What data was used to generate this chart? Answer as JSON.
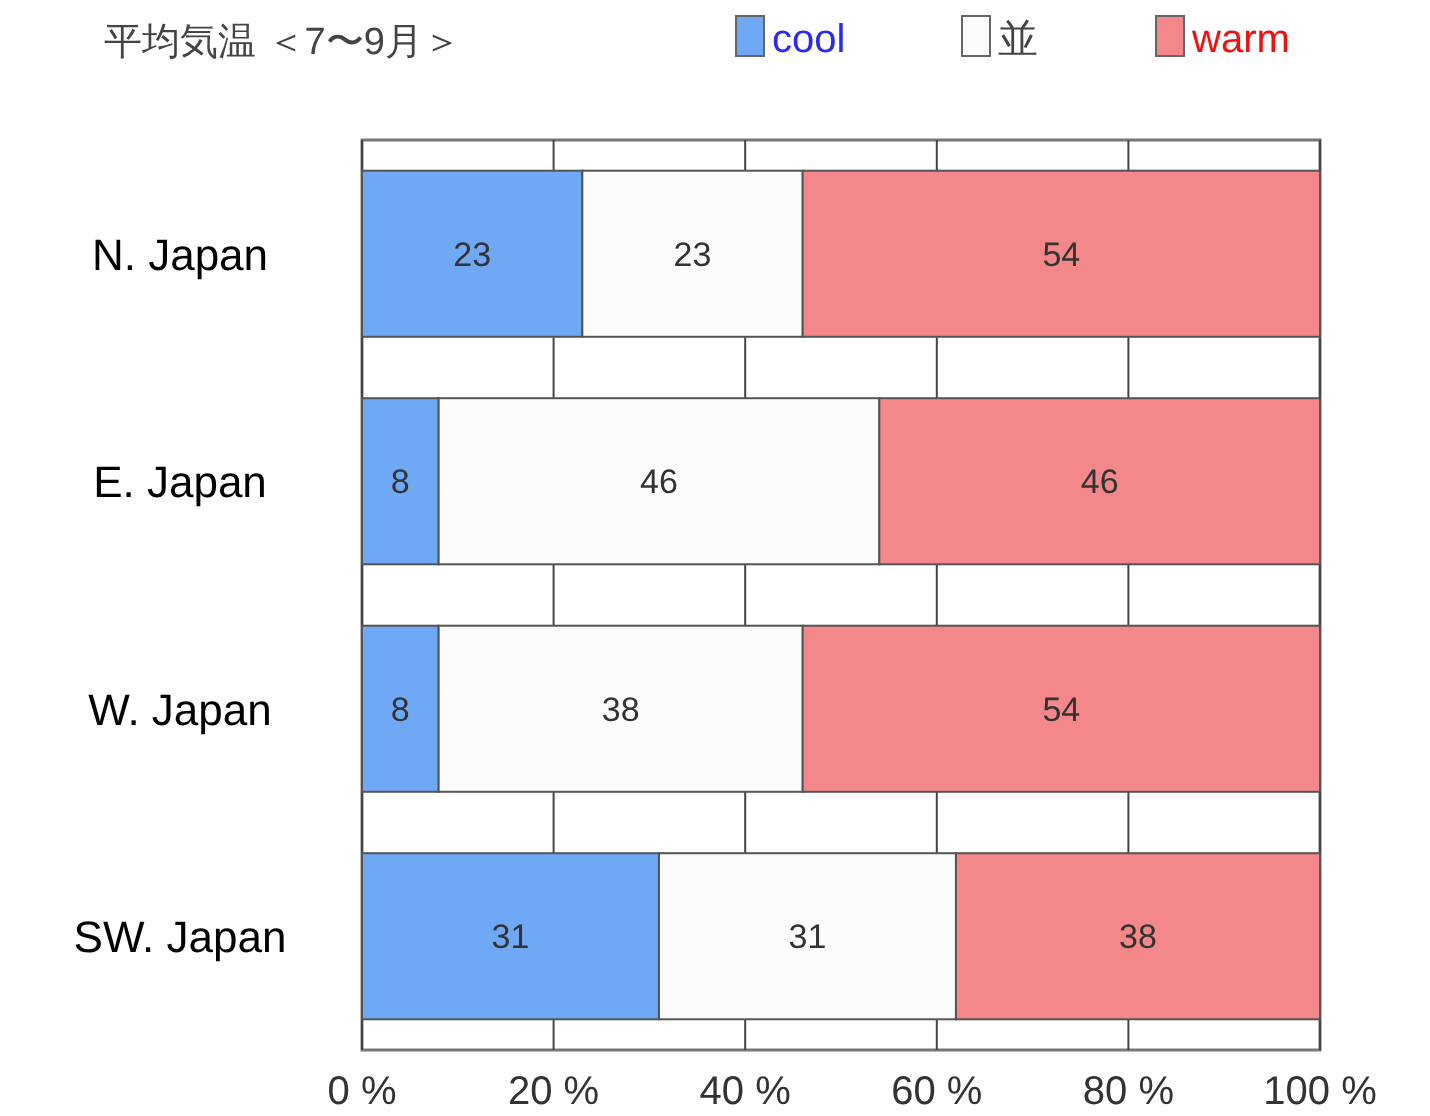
{
  "chart_data": {
    "type": "bar",
    "orientation": "horizontal",
    "stacked": true,
    "title": "平均気温 ＜7〜9月＞",
    "categories": [
      "N. Japan",
      "E. Japan",
      "W. Japan",
      "SW. Japan"
    ],
    "series": [
      {
        "name": "cool",
        "color": "#6fa8f5",
        "values": [
          23,
          8,
          8,
          31
        ]
      },
      {
        "name": "並",
        "color": "#fcfcfc",
        "values": [
          23,
          46,
          38,
          31
        ]
      },
      {
        "name": "warm",
        "color": "#f4878a",
        "values": [
          54,
          46,
          54,
          38
        ]
      }
    ],
    "xlim": [
      0,
      100
    ],
    "xticks": [
      {
        "value": 0,
        "label": "0 %"
      },
      {
        "value": 20,
        "label": "20 %"
      },
      {
        "value": 40,
        "label": "40 %"
      },
      {
        "value": 60,
        "label": "60 %"
      },
      {
        "value": 80,
        "label": "80 %"
      },
      {
        "value": 100,
        "label": "100 %"
      }
    ],
    "grid": "x",
    "legend": "top",
    "data_labels": true
  }
}
